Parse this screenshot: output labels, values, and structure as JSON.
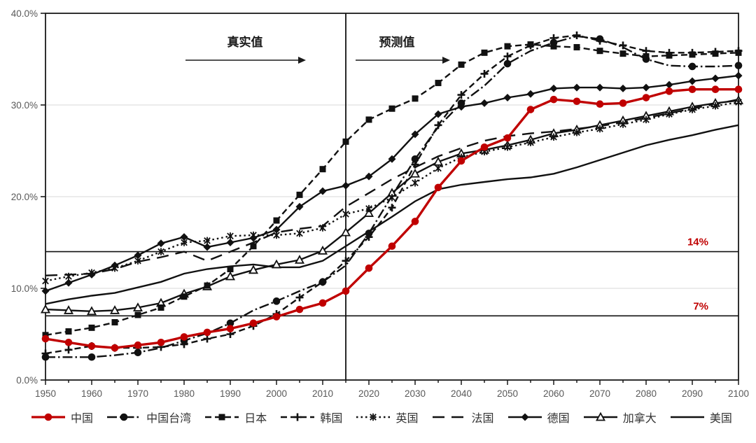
{
  "annotations": {
    "actual_label": "真实值",
    "forecast_label": "预测值",
    "ref_label_14": "14%",
    "ref_label_7": "7%",
    "ref_color": "#c00000"
  },
  "axis": {
    "y_tick_labels": [
      "40.0%",
      "30.0%",
      "20.0%",
      "10.0%",
      "0.0%"
    ],
    "x_tick_labels": [
      "1950",
      "1960",
      "1970",
      "1980",
      "1990",
      "2000",
      "2010",
      "2020",
      "2030",
      "2040",
      "2050",
      "2060",
      "2070",
      "2080",
      "2090",
      "2100"
    ]
  },
  "chart_data": {
    "type": "line",
    "x_range": [
      1950,
      2100
    ],
    "x_step": 5,
    "ylim": [
      0,
      40
    ],
    "y_unit": "percent (population aged 65+)",
    "grid_values": [
      10,
      20,
      30
    ],
    "divider_x": 2015,
    "reference_lines": [
      {
        "value": 14,
        "label": "14%"
      },
      {
        "value": 7,
        "label": "7%"
      }
    ],
    "legend_position": "bottom",
    "series": [
      {
        "name": "美国",
        "color": "#111111",
        "line": "solid",
        "marker": "none",
        "marker_every": 0,
        "values": [
          8.3,
          8.8,
          9.2,
          9.5,
          10.1,
          10.7,
          11.6,
          12.1,
          12.4,
          12.6,
          12.3,
          12.3,
          13.0,
          14.6,
          16.2,
          17.8,
          19.5,
          20.8,
          21.3,
          21.6,
          21.9,
          22.1,
          22.5,
          23.2,
          24.0,
          24.8,
          25.6,
          26.2,
          26.7,
          27.3,
          27.8
        ]
      },
      {
        "name": "法国",
        "color": "#111111",
        "line": "longdash",
        "marker": "none",
        "marker_every": 0,
        "values": [
          11.4,
          11.5,
          11.6,
          12.1,
          12.9,
          13.4,
          14.0,
          13.0,
          14.0,
          15.0,
          16.1,
          16.5,
          16.8,
          18.9,
          20.4,
          21.9,
          23.2,
          24.4,
          25.3,
          26.1,
          26.6,
          26.9,
          27.1,
          27.4,
          27.7,
          28.1,
          28.6,
          29.1,
          29.6,
          30.1,
          30.6
        ]
      },
      {
        "name": "加拿大",
        "color": "#111111",
        "line": "solid",
        "marker": "triangle-open",
        "marker_every": 5,
        "values": [
          7.7,
          7.6,
          7.5,
          7.6,
          7.9,
          8.4,
          9.4,
          10.2,
          11.3,
          12.0,
          12.6,
          13.1,
          14.1,
          16.1,
          18.2,
          20.4,
          22.5,
          23.8,
          24.7,
          25.1,
          25.6,
          26.2,
          26.9,
          27.3,
          27.8,
          28.3,
          28.8,
          29.3,
          29.8,
          30.2,
          30.5
        ]
      },
      {
        "name": "英国",
        "color": "#111111",
        "line": "dot",
        "marker": "asterisk",
        "marker_every": 5,
        "values": [
          10.8,
          11.3,
          11.7,
          12.2,
          13.0,
          14.0,
          15.0,
          15.2,
          15.7,
          15.8,
          15.8,
          16.0,
          16.6,
          18.1,
          18.7,
          19.9,
          21.5,
          23.1,
          24.3,
          24.9,
          25.4,
          25.9,
          26.5,
          27.0,
          27.4,
          27.9,
          28.4,
          29.0,
          29.5,
          29.9,
          30.3
        ]
      },
      {
        "name": "德国",
        "color": "#111111",
        "line": "solid",
        "marker": "diamond",
        "marker_every": 5,
        "values": [
          9.7,
          10.6,
          11.5,
          12.5,
          13.6,
          14.9,
          15.6,
          14.5,
          15.0,
          15.5,
          16.4,
          18.9,
          20.6,
          21.2,
          22.2,
          24.1,
          26.8,
          29.0,
          29.8,
          30.2,
          30.8,
          31.2,
          31.8,
          31.9,
          31.9,
          31.8,
          31.9,
          32.2,
          32.6,
          32.9,
          33.2
        ]
      },
      {
        "name": "韩国",
        "color": "#111111",
        "line": "dash",
        "marker": "plus",
        "marker_every": 5,
        "values": [
          2.9,
          3.3,
          3.7,
          3.5,
          3.5,
          3.6,
          3.9,
          4.5,
          5.0,
          5.9,
          7.2,
          9.0,
          10.7,
          13.0,
          15.6,
          18.8,
          23.5,
          27.8,
          31.1,
          33.4,
          35.3,
          36.5,
          37.3,
          37.6,
          37.0,
          36.5,
          35.9,
          35.7,
          35.7,
          35.8,
          35.9
        ]
      },
      {
        "name": "中国台湾",
        "color": "#111111",
        "line": "dashdot",
        "marker": "circle",
        "marker_every": 10,
        "values": [
          2.5,
          2.5,
          2.5,
          2.7,
          3.0,
          3.5,
          4.3,
          5.1,
          6.2,
          7.6,
          8.6,
          9.7,
          10.7,
          12.5,
          16.0,
          20.1,
          24.1,
          27.6,
          30.2,
          32.1,
          34.5,
          35.9,
          36.8,
          37.5,
          37.2,
          36.3,
          35.0,
          34.3,
          34.2,
          34.2,
          34.3
        ]
      },
      {
        "name": "日本",
        "color": "#111111",
        "line": "dash",
        "marker": "square",
        "marker_every": 5,
        "values": [
          4.9,
          5.3,
          5.7,
          6.3,
          7.1,
          7.9,
          9.1,
          10.3,
          12.1,
          14.6,
          17.4,
          20.2,
          23.0,
          26.0,
          28.4,
          29.6,
          30.7,
          32.4,
          34.4,
          35.7,
          36.4,
          36.6,
          36.4,
          36.3,
          35.9,
          35.6,
          35.3,
          35.4,
          35.5,
          35.6,
          35.7
        ]
      },
      {
        "name": "中国",
        "color": "#c00000",
        "line": "solid",
        "marker": "circle",
        "marker_every": 5,
        "values": [
          4.5,
          4.1,
          3.7,
          3.5,
          3.8,
          4.1,
          4.7,
          5.2,
          5.6,
          6.2,
          6.9,
          7.7,
          8.4,
          9.7,
          12.2,
          14.6,
          17.3,
          21.0,
          23.9,
          25.4,
          26.4,
          29.5,
          30.6,
          30.4,
          30.1,
          30.2,
          30.8,
          31.5,
          31.7,
          31.7,
          31.7
        ]
      }
    ]
  },
  "legend_order": [
    "中国",
    "中国台湾",
    "日本",
    "韩国",
    "英国",
    "法国",
    "德国",
    "加拿大",
    "美国"
  ]
}
